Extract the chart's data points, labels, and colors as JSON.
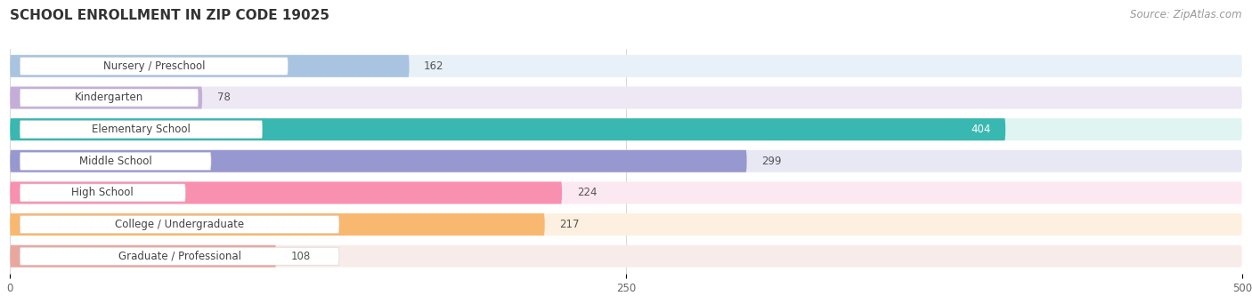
{
  "title": "SCHOOL ENROLLMENT IN ZIP CODE 19025",
  "source": "Source: ZipAtlas.com",
  "categories": [
    "Nursery / Preschool",
    "Kindergarten",
    "Elementary School",
    "Middle School",
    "High School",
    "College / Undergraduate",
    "Graduate / Professional"
  ],
  "values": [
    162,
    78,
    404,
    299,
    224,
    217,
    108
  ],
  "bar_colors": [
    "#a8c4e0",
    "#c4aed8",
    "#38b8b0",
    "#9898d0",
    "#f890b0",
    "#f8b870",
    "#e8a8a0"
  ],
  "bar_bg_colors": [
    "#e8f0f8",
    "#ede8f4",
    "#e0f4f2",
    "#e8e8f4",
    "#fce8f0",
    "#fdf0e0",
    "#f8eceb"
  ],
  "label_bg": "#ffffff",
  "xlim": [
    0,
    500
  ],
  "xticks": [
    0,
    250,
    500
  ],
  "title_fontsize": 11,
  "source_fontsize": 8.5,
  "label_fontsize": 8.5,
  "value_fontsize": 8.5,
  "background_color": "#ffffff",
  "value_label_color_inside": "#ffffff",
  "value_label_color_outside": "#555555",
  "inside_threshold": 404
}
